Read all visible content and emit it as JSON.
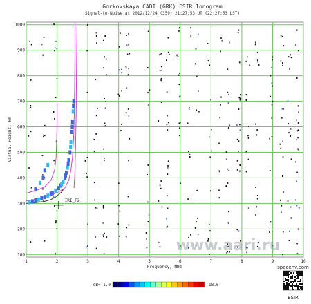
{
  "chart_data": {
    "type": "scatter",
    "title": "Gorkovskaya CADI (GRK) ESIR Ionogram",
    "subtitle": "Signal-to-Noise at 2012/12/24 (359) 21:27:53 UT (22:27:53 LST)",
    "xlabel": "Frequency, MHz",
    "ylabel": "Virtual Height, km",
    "xlim": [
      1,
      10
    ],
    "ylim": [
      90,
      1010
    ],
    "x_ticks": [
      1,
      2,
      3,
      4,
      5,
      6,
      7,
      8,
      9,
      10
    ],
    "y_ticks": [
      100,
      200,
      300,
      400,
      500,
      600,
      700,
      800,
      900,
      1000
    ],
    "x_tick_labels": [
      "1",
      "2",
      "3",
      "4",
      "5",
      "6",
      "7",
      "8",
      "9",
      "10"
    ],
    "y_tick_labels": [
      "100",
      "200",
      "300",
      "400",
      "500",
      "600",
      "700",
      "800",
      "900",
      "1000"
    ],
    "grid": true,
    "colors": {
      "grid": "#66cc55",
      "model_curve": "#cc44cc",
      "trace_low": "#4466dd",
      "trace_high": "#33bbee",
      "noise": "#111111"
    },
    "series": [
      {
        "kind": "echo-trace-f2",
        "points": [
          [
            1.95,
            350
          ],
          [
            2.05,
            360
          ],
          [
            2.12,
            370
          ],
          [
            2.2,
            385
          ],
          [
            2.26,
            400
          ],
          [
            2.3,
            420
          ],
          [
            2.34,
            440
          ],
          [
            2.38,
            470
          ],
          [
            2.42,
            500
          ],
          [
            2.45,
            540
          ],
          [
            2.48,
            580
          ],
          [
            2.5,
            620
          ],
          [
            2.52,
            660
          ],
          [
            2.54,
            700
          ],
          [
            1.85,
            340
          ],
          [
            2.15,
            375
          ],
          [
            2.28,
            410
          ],
          [
            2.36,
            455
          ],
          [
            2.44,
            520
          ],
          [
            2.49,
            600
          ],
          [
            2.53,
            680
          ]
        ]
      },
      {
        "kind": "echo-trace-low",
        "points": [
          [
            1.1,
            305
          ],
          [
            1.2,
            308
          ],
          [
            1.3,
            312
          ],
          [
            1.4,
            315
          ],
          [
            1.5,
            320
          ],
          [
            1.6,
            325
          ],
          [
            1.7,
            330
          ],
          [
            1.8,
            338
          ],
          [
            1.3,
            355
          ],
          [
            1.45,
            380
          ],
          [
            1.55,
            400
          ],
          [
            1.6,
            430
          ],
          [
            1.7,
            450
          ]
        ]
      },
      {
        "kind": "model-curve-1",
        "points": [
          [
            1.0,
            340
          ],
          [
            1.3,
            350
          ],
          [
            1.6,
            365
          ],
          [
            1.8,
            390
          ],
          [
            1.92,
            430
          ],
          [
            1.97,
            480
          ],
          [
            1.99,
            560
          ],
          [
            2.0,
            620
          ],
          [
            2.0,
            700
          ]
        ]
      },
      {
        "kind": "model-curve-2",
        "points": [
          [
            1.0,
            310
          ],
          [
            1.4,
            318
          ],
          [
            1.75,
            330
          ],
          [
            2.05,
            345
          ],
          [
            2.25,
            360
          ],
          [
            2.38,
            390
          ],
          [
            2.45,
            430
          ],
          [
            2.5,
            480
          ],
          [
            2.54,
            560
          ],
          [
            2.56,
            650
          ],
          [
            2.57,
            760
          ],
          [
            2.58,
            880
          ],
          [
            2.58,
            1010
          ]
        ]
      },
      {
        "kind": "model-curve-3",
        "points": [
          [
            2.55,
            360
          ],
          [
            2.58,
            420
          ],
          [
            2.6,
            520
          ],
          [
            2.62,
            650
          ],
          [
            2.63,
            800
          ],
          [
            2.64,
            920
          ],
          [
            2.65,
            1010
          ]
        ]
      },
      {
        "kind": "o-trace",
        "points": [
          [
            1.0,
            300
          ],
          [
            1.3,
            303
          ],
          [
            1.6,
            308
          ],
          [
            1.8,
            315
          ],
          [
            1.95,
            325
          ],
          [
            2.05,
            335
          ],
          [
            2.15,
            345
          ],
          [
            2.2,
            355
          ]
        ]
      }
    ],
    "annotations": [
      {
        "text": "IRI_F2",
        "x": 2.25,
        "y": 320
      }
    ],
    "colorbar": {
      "label": "dB= 1.0",
      "max_label": "18.0",
      "min": 1.0,
      "max": 18.0,
      "colors": [
        "#000066",
        "#0000aa",
        "#0000ff",
        "#0055ff",
        "#0099ff",
        "#00ccff",
        "#00ffee",
        "#66ffcc",
        "#aaff99",
        "#ddff55",
        "#ffff00",
        "#ffcc00",
        "#ff9900",
        "#ff6600",
        "#ff3300",
        "#ee0000",
        "#cc0000"
      ]
    }
  },
  "watermark": "www.aari.ru",
  "brand": {
    "site": "spacenv.com",
    "label": "ESIR"
  }
}
